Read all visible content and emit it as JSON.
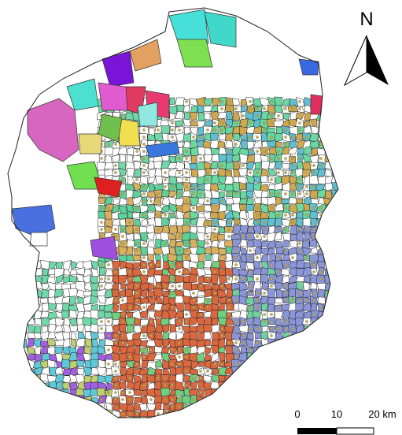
{
  "map": {
    "north_label": "N",
    "scale_bar": {
      "labels": [
        "0",
        "10",
        "20 km"
      ]
    }
  }
}
